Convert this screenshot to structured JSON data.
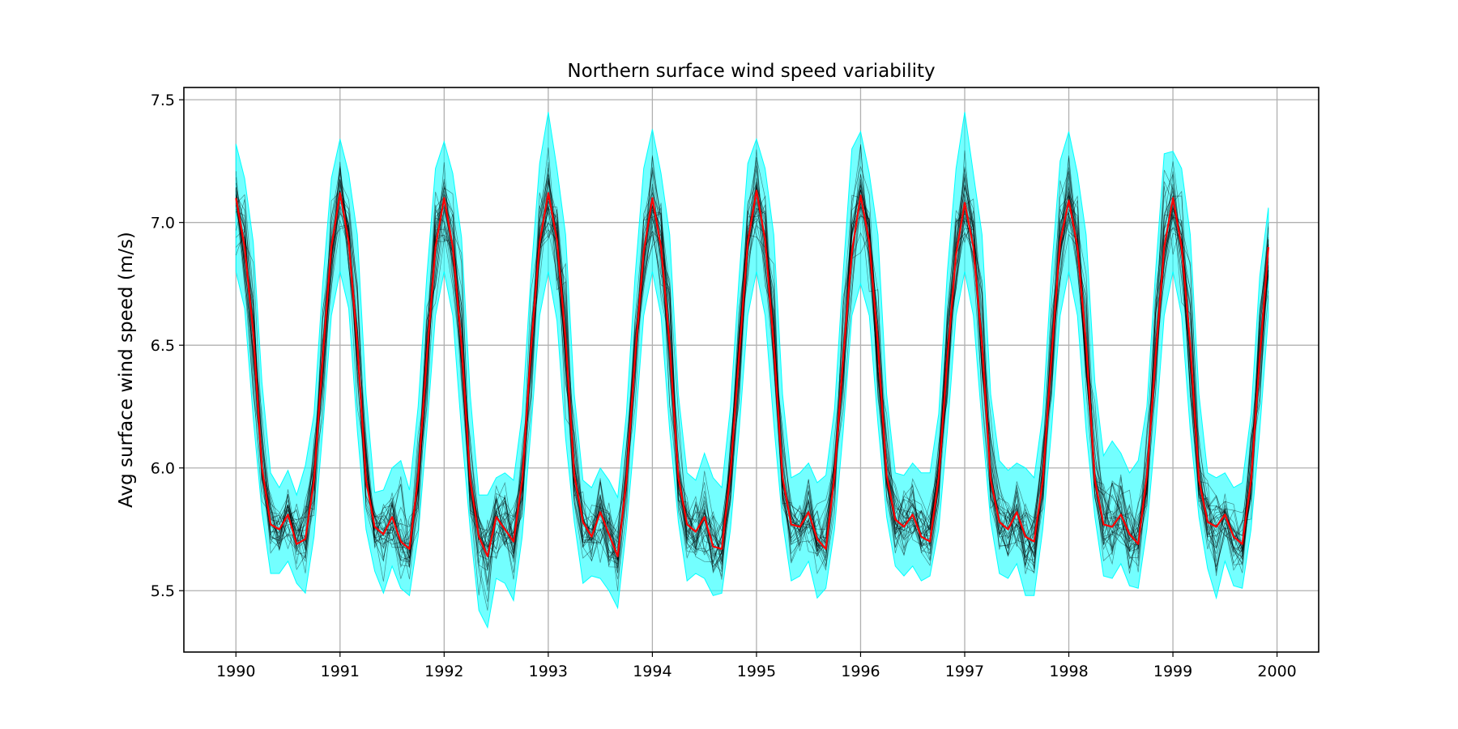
{
  "chart_data": {
    "type": "line",
    "title": "Northern surface wind speed variability",
    "xlabel": "",
    "ylabel": "Avg surface wind speed (m/s)",
    "xlim": [
      1989.5,
      2000.4
    ],
    "ylim": [
      5.25,
      7.55
    ],
    "x_ticks": [
      1990,
      1991,
      1992,
      1993,
      1994,
      1995,
      1996,
      1997,
      1998,
      1999,
      2000
    ],
    "x_tick_labels": [
      "1990",
      "1991",
      "1992",
      "1993",
      "1994",
      "1995",
      "1996",
      "1997",
      "1998",
      "1999",
      "2000"
    ],
    "y_ticks": [
      5.5,
      6.0,
      6.5,
      7.0,
      7.5
    ],
    "y_tick_labels": [
      "5.5",
      "6.0",
      "6.5",
      "7.0",
      "7.5"
    ],
    "grid": true,
    "x_start": 1990,
    "x_step": 0.0833333,
    "mean_monthly": [
      7.1,
      6.9,
      6.55,
      6.0,
      5.77,
      5.75,
      5.81,
      5.69,
      5.71,
      5.95,
      6.45,
      6.9,
      7.12,
      6.92,
      6.5,
      5.95,
      5.76,
      5.73,
      5.8,
      5.7,
      5.67,
      5.96,
      6.45,
      6.9,
      7.1,
      6.9,
      6.5,
      5.95,
      5.72,
      5.64,
      5.8,
      5.75,
      5.7,
      5.95,
      6.48,
      6.92,
      7.12,
      6.93,
      6.52,
      5.97,
      5.78,
      5.72,
      5.82,
      5.73,
      5.64,
      5.95,
      6.45,
      6.88,
      7.1,
      6.9,
      6.5,
      5.96,
      5.77,
      5.74,
      5.8,
      5.68,
      5.67,
      5.98,
      6.46,
      6.92,
      7.13,
      6.93,
      6.5,
      5.96,
      5.77,
      5.76,
      5.82,
      5.71,
      5.67,
      5.97,
      6.45,
      6.88,
      7.11,
      6.92,
      6.5,
      5.97,
      5.79,
      5.76,
      5.81,
      5.72,
      5.7,
      5.96,
      6.45,
      6.87,
      7.08,
      6.9,
      6.5,
      5.95,
      5.78,
      5.75,
      5.82,
      5.72,
      5.7,
      5.95,
      6.45,
      6.92,
      7.09,
      6.9,
      6.5,
      5.95,
      5.77,
      5.76,
      5.81,
      5.73,
      5.69,
      5.97,
      6.45,
      6.9,
      7.1,
      6.9,
      6.5,
      5.95,
      5.78,
      5.76,
      5.81,
      5.72,
      5.69,
      5.95,
      6.45,
      6.9
    ],
    "band_upper": [
      7.32,
      7.18,
      6.92,
      6.35,
      5.98,
      5.92,
      5.99,
      5.89,
      6.01,
      6.22,
      6.75,
      7.18,
      7.34,
      7.2,
      6.95,
      6.3,
      5.9,
      5.91,
      6.0,
      6.03,
      5.91,
      6.25,
      6.78,
      7.22,
      7.33,
      7.2,
      6.94,
      6.3,
      5.89,
      5.89,
      5.96,
      5.98,
      5.95,
      6.22,
      6.78,
      7.24,
      7.45,
      7.22,
      6.95,
      6.3,
      5.95,
      5.92,
      6.0,
      5.95,
      5.88,
      6.22,
      6.78,
      7.22,
      7.38,
      7.2,
      6.95,
      6.3,
      5.98,
      5.95,
      6.06,
      5.96,
      5.92,
      6.25,
      6.78,
      7.24,
      7.34,
      7.22,
      6.95,
      6.3,
      5.96,
      5.98,
      6.02,
      5.94,
      5.97,
      6.24,
      6.8,
      7.3,
      7.37,
      7.2,
      6.95,
      6.3,
      5.98,
      5.97,
      6.02,
      5.98,
      5.98,
      6.22,
      6.8,
      7.22,
      7.45,
      7.2,
      6.95,
      6.3,
      6.03,
      5.99,
      6.02,
      6.0,
      5.96,
      6.22,
      6.8,
      7.25,
      7.37,
      7.2,
      6.95,
      6.35,
      6.05,
      6.11,
      6.06,
      5.98,
      6.03,
      6.25,
      6.8,
      7.28,
      7.29,
      7.22,
      6.95,
      6.3,
      5.98,
      5.96,
      5.98,
      5.92,
      5.94,
      6.22,
      6.78,
      7.06
    ],
    "band_lower": [
      6.8,
      6.65,
      6.2,
      5.82,
      5.57,
      5.57,
      5.62,
      5.53,
      5.49,
      5.72,
      6.15,
      6.62,
      6.8,
      6.65,
      6.15,
      5.75,
      5.58,
      5.49,
      5.6,
      5.51,
      5.48,
      5.72,
      6.15,
      6.62,
      6.8,
      6.62,
      6.15,
      5.75,
      5.42,
      5.35,
      5.55,
      5.53,
      5.46,
      5.72,
      6.15,
      6.62,
      6.8,
      6.6,
      6.12,
      5.78,
      5.53,
      5.56,
      5.55,
      5.5,
      5.43,
      5.75,
      6.15,
      6.62,
      6.8,
      6.62,
      6.15,
      5.78,
      5.54,
      5.57,
      5.55,
      5.48,
      5.49,
      5.75,
      6.15,
      6.62,
      6.8,
      6.62,
      6.18,
      5.78,
      5.54,
      5.56,
      5.62,
      5.47,
      5.51,
      5.75,
      6.15,
      6.62,
      6.75,
      6.62,
      6.18,
      5.8,
      5.6,
      5.56,
      5.6,
      5.54,
      5.56,
      5.75,
      6.15,
      6.62,
      6.8,
      6.62,
      6.18,
      5.78,
      5.57,
      5.55,
      5.61,
      5.48,
      5.48,
      5.75,
      6.15,
      6.62,
      6.8,
      6.62,
      6.15,
      5.8,
      5.56,
      5.55,
      5.61,
      5.52,
      5.51,
      5.75,
      6.15,
      6.62,
      6.8,
      6.62,
      6.15,
      5.8,
      5.59,
      5.47,
      5.62,
      5.52,
      5.51,
      5.75,
      6.15,
      6.62
    ],
    "series": [
      {
        "values": [],
        "color": "#ff0000"
      }
    ],
    "ensemble_member_count": 30,
    "colors": {
      "band": "#00ffff",
      "members": "#000000",
      "mean": "#ff0000",
      "grid": "#b0b0b0",
      "axes": "#000000"
    }
  }
}
